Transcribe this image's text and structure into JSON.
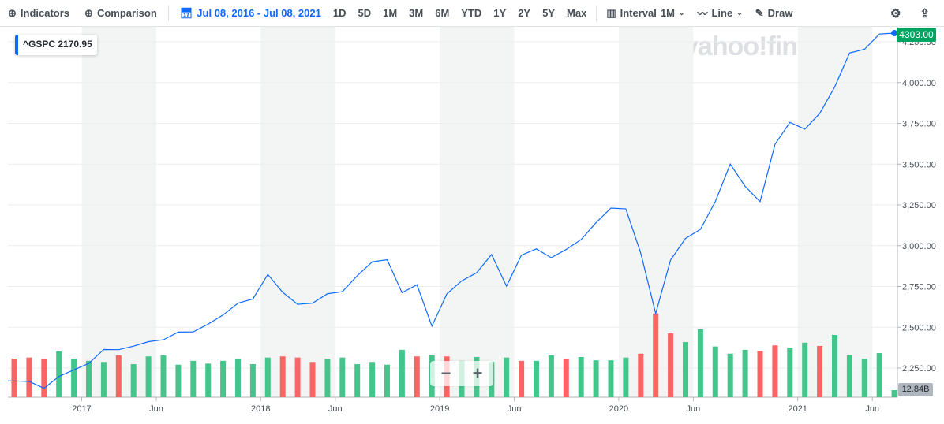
{
  "toolbar": {
    "indicators": "Indicators",
    "comparison": "Comparison",
    "date_range": "Jul 08, 2016 - Jul 08, 2021",
    "ranges": [
      "1D",
      "5D",
      "1M",
      "3M",
      "6M",
      "YTD",
      "1Y",
      "2Y",
      "5Y",
      "Max"
    ],
    "interval_label": "Interval",
    "interval_value": "1M",
    "chart_type": "Line",
    "draw": "Draw"
  },
  "legend": {
    "symbol": "^GSPC",
    "value": "2170.95"
  },
  "watermark": "yahoo!finance",
  "current_price_badge": "4303.00",
  "volume_badge": "12.84B",
  "zoom_controls": {
    "minus": "−",
    "plus": "+"
  },
  "colors": {
    "line": "#0f69ff",
    "up": "#45c48b",
    "down": "#f96464",
    "badge": "#00a562",
    "shade": "#f3f5f4"
  },
  "chart_data": {
    "type": "line",
    "symbol": "^GSPC",
    "interval": "1M",
    "y_ticks": [
      "2,250.00",
      "2,500.00",
      "2,750.00",
      "3,000.00",
      "3,250.00",
      "3,500.00",
      "3,750.00",
      "4,000.00",
      "4,250.00"
    ],
    "y_tick_values": [
      2250,
      2500,
      2750,
      3000,
      3250,
      3500,
      3750,
      4000,
      4250
    ],
    "x_ticks": [
      "2017",
      "Jun",
      "2018",
      "Jun",
      "2019",
      "Jun",
      "2020",
      "Jun",
      "2021",
      "Jun"
    ],
    "x_tick_dates": [
      "2017-01",
      "2017-06",
      "2018-01",
      "2018-06",
      "2019-01",
      "2019-06",
      "2020-01",
      "2020-06",
      "2021-01",
      "2021-06"
    ],
    "months": [
      "2016-08",
      "2016-09",
      "2016-10",
      "2016-11",
      "2016-12",
      "2017-01",
      "2017-02",
      "2017-03",
      "2017-04",
      "2017-05",
      "2017-06",
      "2017-07",
      "2017-08",
      "2017-09",
      "2017-10",
      "2017-11",
      "2017-12",
      "2018-01",
      "2018-02",
      "2018-03",
      "2018-04",
      "2018-05",
      "2018-06",
      "2018-07",
      "2018-08",
      "2018-09",
      "2018-10",
      "2018-11",
      "2018-12",
      "2019-01",
      "2019-02",
      "2019-03",
      "2019-04",
      "2019-05",
      "2019-06",
      "2019-07",
      "2019-08",
      "2019-09",
      "2019-10",
      "2019-11",
      "2019-12",
      "2020-01",
      "2020-02",
      "2020-03",
      "2020-04",
      "2020-05",
      "2020-06",
      "2020-07",
      "2020-08",
      "2020-09",
      "2020-10",
      "2020-11",
      "2020-12",
      "2021-01",
      "2021-02",
      "2021-03",
      "2021-04",
      "2021-05",
      "2021-06",
      "2021-07"
    ],
    "close": [
      2170.95,
      2168.27,
      2126.15,
      2198.81,
      2238.83,
      2278.87,
      2363.64,
      2362.72,
      2384.2,
      2411.8,
      2423.41,
      2470.3,
      2471.65,
      2519.36,
      2575.26,
      2647.58,
      2673.61,
      2823.81,
      2713.83,
      2640.87,
      2648.05,
      2705.27,
      2718.37,
      2816.29,
      2901.52,
      2913.98,
      2711.74,
      2760.17,
      2506.85,
      2704.1,
      2784.49,
      2834.4,
      2945.83,
      2752.06,
      2941.76,
      2980.38,
      2926.46,
      2976.74,
      3037.56,
      3140.98,
      3230.78,
      3225.52,
      2954.22,
      2584.59,
      2912.43,
      3044.31,
      3100.29,
      3271.12,
      3500.31,
      3363.0,
      3269.96,
      3621.63,
      3756.07,
      3714.24,
      3811.15,
      3972.89,
      4181.17,
      4204.11,
      4297.5,
      4303.0
    ],
    "volume_b": [
      70,
      72,
      69,
      83,
      70,
      66,
      64,
      76,
      60,
      74,
      76,
      59,
      66,
      61,
      66,
      69,
      60,
      72,
      74,
      72,
      64,
      70,
      72,
      60,
      64,
      59,
      86,
      74,
      77,
      74,
      66,
      73,
      64,
      72,
      66,
      66,
      76,
      69,
      73,
      67,
      67,
      72,
      79,
      152,
      116,
      100,
      123,
      92,
      79,
      86,
      84,
      94,
      90,
      99,
      93,
      113,
      77,
      70,
      80,
      12.84
    ],
    "volume_dir": [
      "d",
      "d",
      "d",
      "u",
      "u",
      "u",
      "u",
      "d",
      "u",
      "u",
      "u",
      "u",
      "u",
      "u",
      "u",
      "u",
      "u",
      "u",
      "d",
      "d",
      "d",
      "u",
      "u",
      "u",
      "u",
      "u",
      "u",
      "d",
      "u",
      "d",
      "u",
      "u",
      "u",
      "u",
      "d",
      "u",
      "u",
      "d",
      "u",
      "u",
      "u",
      "u",
      "d",
      "d",
      "d",
      "u",
      "u",
      "u",
      "u",
      "u",
      "d",
      "d",
      "u",
      "u",
      "d",
      "u",
      "u",
      "u",
      "u",
      "u"
    ],
    "shaded_periods": [
      [
        "2017-01",
        "2017-06"
      ],
      [
        "2018-01",
        "2018-06"
      ],
      [
        "2019-01",
        "2019-06"
      ],
      [
        "2020-01",
        "2020-06"
      ],
      [
        "2021-01",
        "2021-06"
      ]
    ],
    "grid": true
  }
}
